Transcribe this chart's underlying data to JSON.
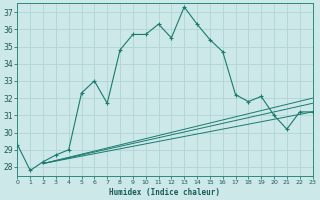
{
  "xlabel": "Humidex (Indice chaleur)",
  "xlim": [
    0,
    23
  ],
  "ylim": [
    27.5,
    37.5
  ],
  "xticks": [
    0,
    1,
    2,
    3,
    4,
    5,
    6,
    7,
    8,
    9,
    10,
    11,
    12,
    13,
    14,
    15,
    16,
    17,
    18,
    19,
    20,
    21,
    22,
    23
  ],
  "yticks": [
    28,
    29,
    30,
    31,
    32,
    33,
    34,
    35,
    36,
    37
  ],
  "bg_color": "#cce8e8",
  "grid_color": "#b0d4d4",
  "line_color": "#1a7a6e",
  "main_line": {
    "x": [
      0,
      1,
      2,
      3,
      4,
      5,
      6,
      7,
      8,
      9,
      10,
      11,
      12,
      13,
      14,
      15,
      16,
      17,
      18,
      19,
      20,
      21,
      22,
      23
    ],
    "y": [
      29.3,
      27.8,
      28.3,
      28.7,
      29.0,
      32.3,
      33.0,
      31.7,
      34.8,
      35.7,
      35.7,
      36.3,
      35.5,
      37.3,
      36.3,
      35.4,
      34.7,
      32.2,
      31.8,
      32.1,
      31.0,
      30.2,
      31.2,
      31.2
    ]
  },
  "trend_lines": [
    {
      "x": [
        2,
        23
      ],
      "y": [
        28.2,
        31.2
      ]
    },
    {
      "x": [
        2,
        23
      ],
      "y": [
        28.2,
        31.7
      ]
    },
    {
      "x": [
        2,
        23
      ],
      "y": [
        28.2,
        32.0
      ]
    }
  ]
}
